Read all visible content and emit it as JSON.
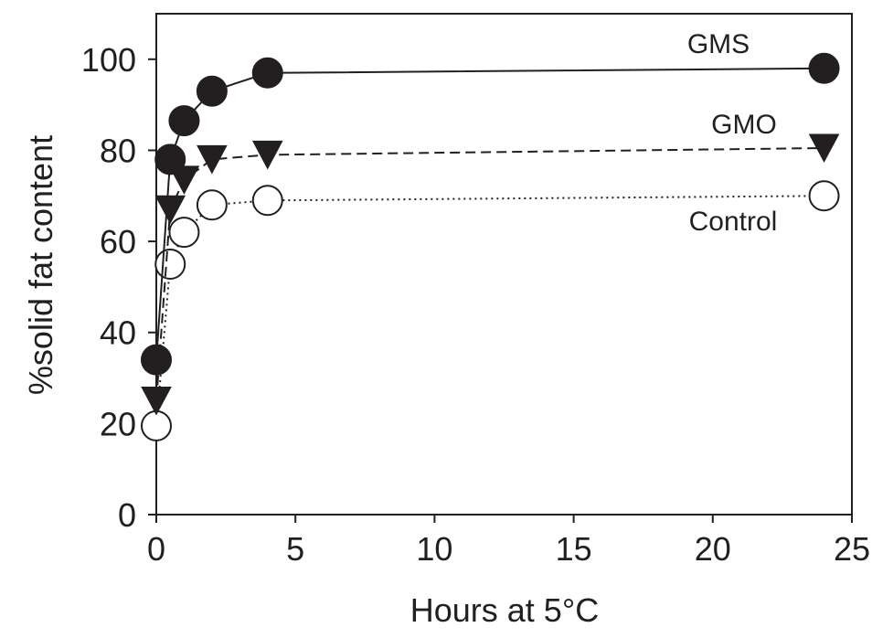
{
  "chart_data": {
    "type": "line",
    "title": "",
    "xlabel": "Hours at 5°C",
    "ylabel": "%solid fat content",
    "xlim": [
      0,
      25
    ],
    "ylim": [
      0,
      110
    ],
    "xticks": [
      0,
      5,
      10,
      15,
      20,
      25
    ],
    "yticks": [
      0,
      20,
      40,
      60,
      80,
      100
    ],
    "grid": false,
    "legend": "none (series labelled inline)",
    "series": [
      {
        "name": "GMS",
        "line_style": "solid",
        "marker": "filled-circle",
        "color": "#231f20",
        "x": [
          0,
          0.5,
          1,
          2,
          4,
          24
        ],
        "y": [
          34,
          78,
          86.5,
          93,
          97,
          98
        ]
      },
      {
        "name": "GMO",
        "line_style": "dashed",
        "marker": "filled-triangle-down",
        "color": "#231f20",
        "x": [
          0,
          0.5,
          1,
          2,
          4,
          24
        ],
        "y": [
          25,
          67,
          73.5,
          78,
          79,
          80.5
        ]
      },
      {
        "name": "Control",
        "line_style": "dotted",
        "marker": "open-circle",
        "color": "#231f20",
        "x": [
          0,
          0.5,
          1,
          2,
          4,
          24
        ],
        "y": [
          19.5,
          55,
          62,
          68,
          69,
          70
        ]
      }
    ]
  }
}
